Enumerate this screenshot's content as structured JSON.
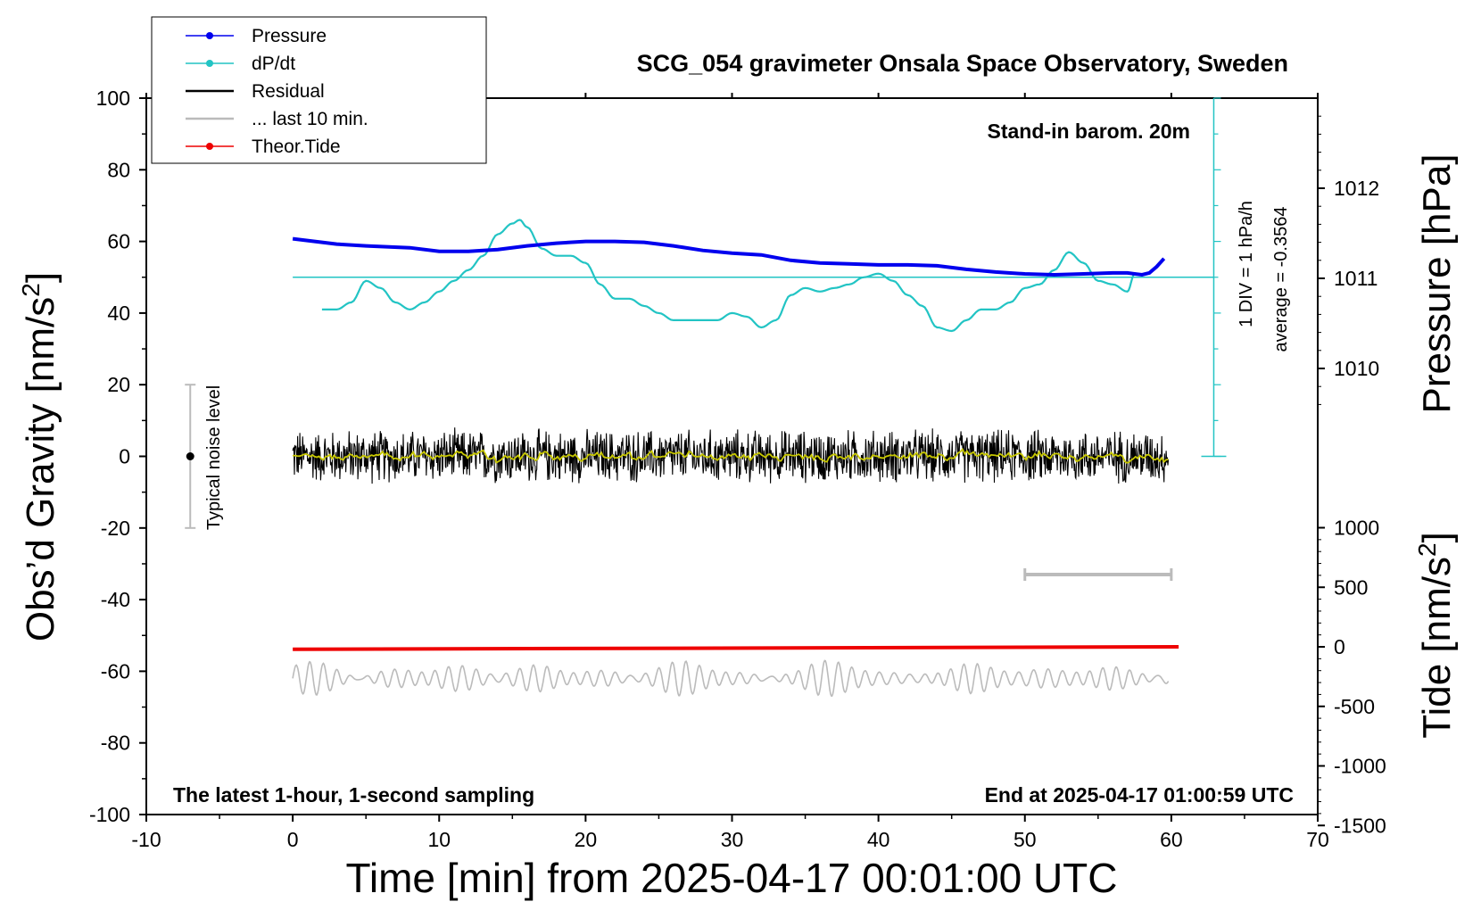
{
  "chart_data": {
    "type": "line",
    "title": "SCG_054 gravimeter Onsala Space Observatory, Sweden",
    "xlabel": "Time [min] from 2025-04-17 00:01:00 UTC",
    "ylabel_left": "Obs’d Gravity [nm/s²]",
    "ylabel_left_main": "Obs’d Gravity [nm/s",
    "ylabel_left_sup": "2",
    "ylabel_left_end": "]",
    "ylabel_right_top": "Pressure [hPa]",
    "ylabel_right_bottom_main": "Tide [nm/s",
    "ylabel_right_bottom_sup": "2",
    "ylabel_right_bottom_end": "]",
    "xlim": [
      -10,
      70
    ],
    "ylim_left": [
      -100,
      100
    ],
    "x_ticks": [
      "-10",
      "0",
      "10",
      "20",
      "30",
      "40",
      "50",
      "60",
      "70"
    ],
    "y_ticks_left": [
      "100",
      "80",
      "60",
      "40",
      "20",
      "0",
      "-20",
      "-40",
      "-60",
      "-80",
      "-100"
    ],
    "pressure_ticks": [
      "1012",
      "1011",
      "1010"
    ],
    "tide_ticks": [
      "1000",
      "500",
      "0",
      "-500",
      "-1000",
      "-1500"
    ],
    "annotations": {
      "barometer": "Stand-in barom. 20m",
      "div": "1 DIV = 1 hPa/h",
      "average": "average = -0.3564",
      "noise": "Typical noise level",
      "latest": "The latest 1-hour, 1-second sampling",
      "end": "End at 2025-04-17 01:00:59 UTC"
    },
    "legend_position": "top-left",
    "legend": [
      {
        "name": "Pressure",
        "color": "#0000ee",
        "marker": true
      },
      {
        "name": "dP/dt",
        "color": "#22c4c4",
        "marker": true
      },
      {
        "name": "Residual",
        "color": "#000000",
        "marker": false
      },
      {
        "name": "... last 10 min.",
        "color": "#bbbbbb",
        "marker": false
      },
      {
        "name": "Theor.Tide",
        "color": "#ee0000",
        "marker": true
      }
    ],
    "colors": {
      "pressure": "#0000ee",
      "dpdt": "#22c4c4",
      "residual": "#000000",
      "residual_smooth": "#c8c800",
      "last10": "#bbbbbb",
      "tide": "#ee0000",
      "wave": "#bbbbbb"
    },
    "series": {
      "pressure_hPa": {
        "x": [
          0,
          3,
          5,
          8,
          10,
          12,
          14,
          16,
          18,
          20,
          22,
          24,
          26,
          28,
          30,
          32,
          34,
          36,
          38,
          40,
          42,
          44,
          46,
          48,
          50,
          52,
          54,
          56,
          57,
          58,
          58.5,
          59,
          59.5
        ],
        "y": [
          1011.44,
          1011.38,
          1011.36,
          1011.34,
          1011.3,
          1011.3,
          1011.32,
          1011.36,
          1011.39,
          1011.41,
          1011.41,
          1011.4,
          1011.36,
          1011.31,
          1011.28,
          1011.26,
          1011.2,
          1011.17,
          1011.16,
          1011.15,
          1011.15,
          1011.14,
          1011.1,
          1011.07,
          1011.05,
          1011.04,
          1011.05,
          1011.06,
          1011.06,
          1011.04,
          1011.06,
          1011.13,
          1011.22
        ]
      },
      "dpdt_div": {
        "baseline_y": 50,
        "x": [
          2,
          3,
          4,
          5,
          6,
          7,
          8,
          9,
          10,
          11,
          12,
          13,
          14,
          15,
          15.5,
          16,
          17,
          18,
          19,
          20,
          21,
          22,
          23,
          24,
          25,
          26,
          27,
          28,
          29,
          30,
          31,
          32,
          33,
          34,
          35,
          36,
          37,
          38,
          39,
          40,
          41,
          42,
          43,
          44,
          45,
          46,
          47,
          48,
          49,
          50,
          51,
          52,
          53,
          54,
          55,
          56,
          57,
          57.5
        ],
        "y": [
          41,
          41,
          43,
          49,
          47,
          43,
          41,
          43,
          46,
          49,
          52,
          56,
          62,
          65,
          66,
          64,
          58,
          56,
          56,
          54,
          48,
          44,
          44,
          42,
          40,
          38,
          38,
          38,
          38,
          40,
          39,
          36,
          38,
          45,
          47,
          46,
          47,
          48,
          50,
          51,
          49,
          45,
          42,
          36,
          35,
          38,
          41,
          41,
          43,
          47,
          48,
          52,
          57,
          54,
          49,
          48,
          46,
          51
        ]
      },
      "residual": {
        "x_start": 0,
        "x_end": 59.8,
        "amplitude": 6,
        "mean": 0
      },
      "last10": {
        "x_start": 50,
        "x_end": 60,
        "y": -33
      },
      "tide": {
        "x": [
          0,
          60.5
        ],
        "y": [
          -21,
          0
        ]
      },
      "wave": {
        "x_start": 0,
        "x_end": 59.8,
        "center": -62,
        "amplitude": 4
      }
    },
    "noise_bar": {
      "x": -7,
      "y": 0,
      "low": -20,
      "high": 20
    }
  }
}
